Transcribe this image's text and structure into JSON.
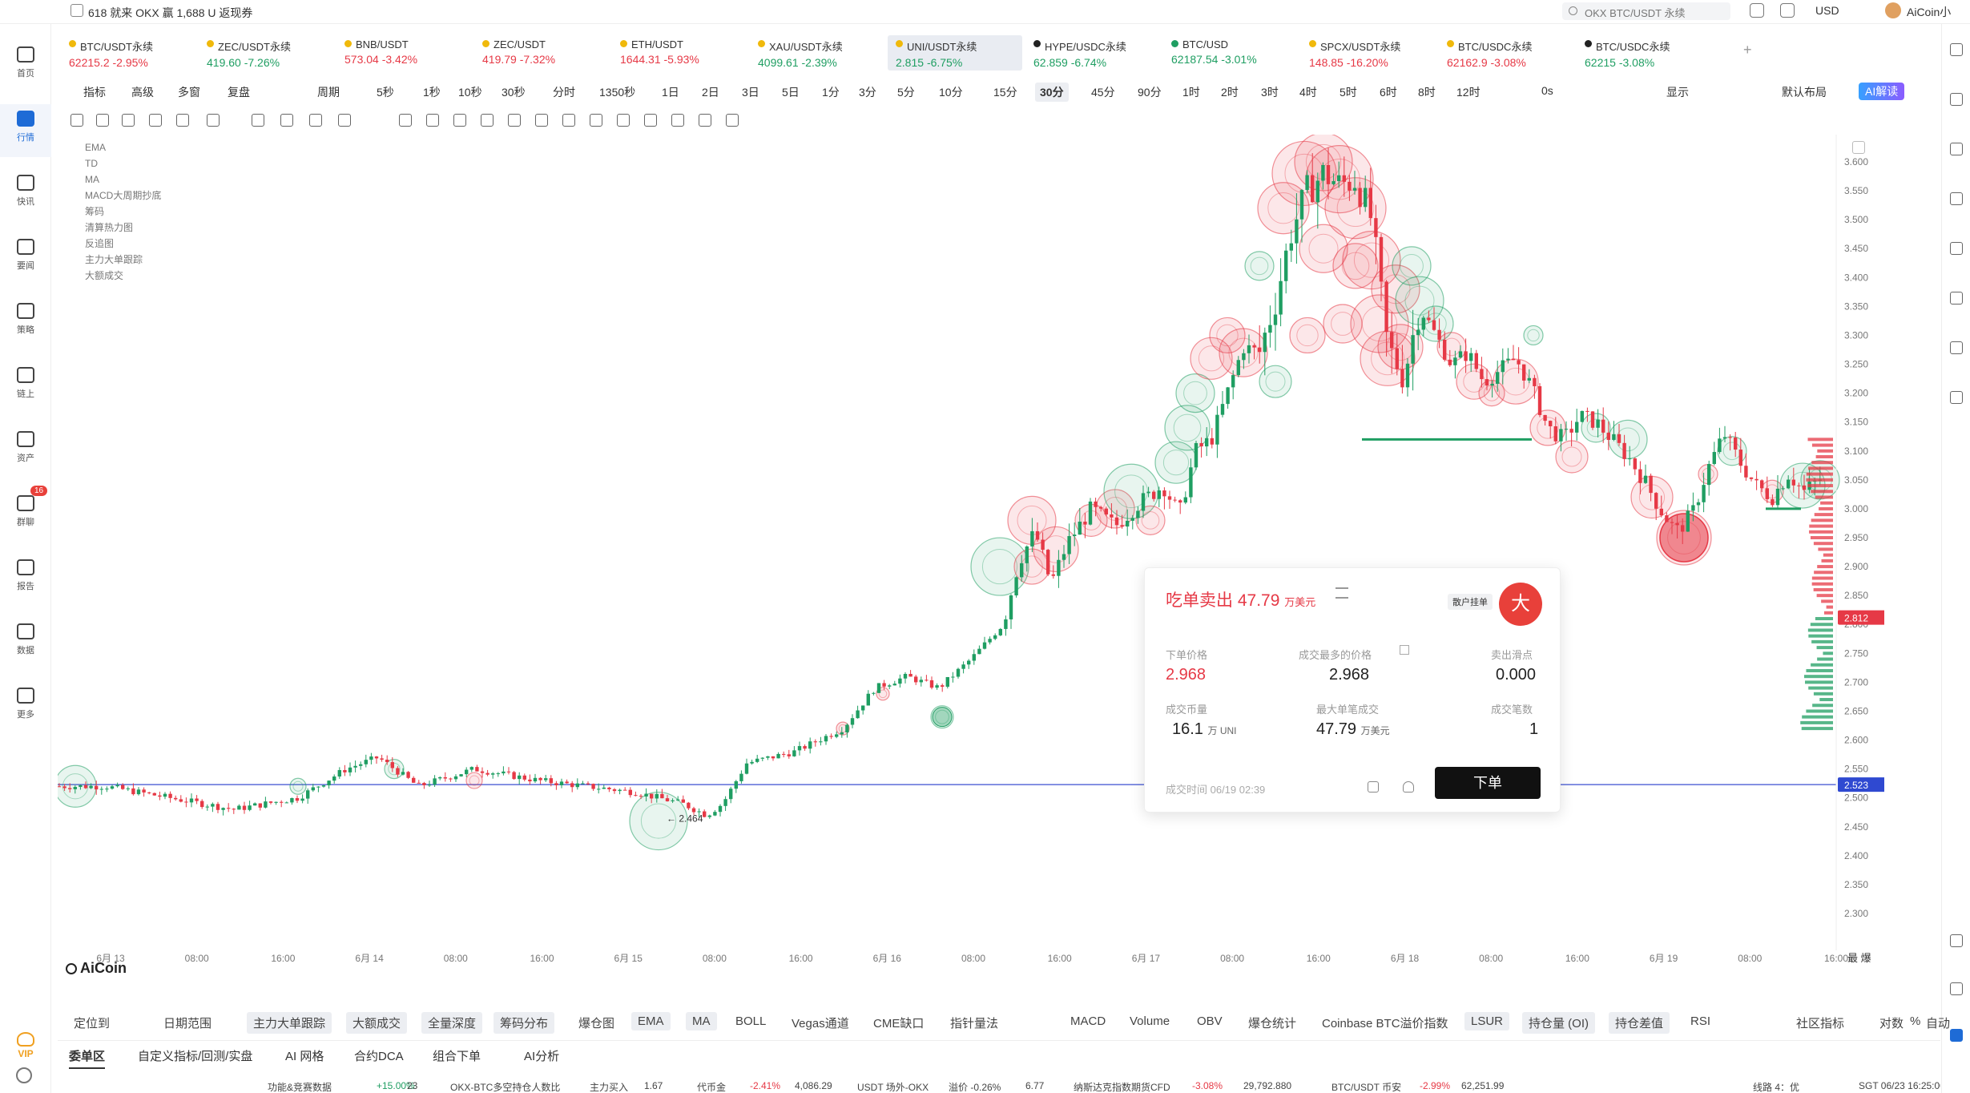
{
  "promo_text": "618 就来 OKX 赢 1,688 U 返现券",
  "search": {
    "placeholder": "OKX BTC/USDT 永续"
  },
  "currency": "USD",
  "username": "AiCoin小",
  "nav": [
    {
      "id": "home",
      "label": "首页"
    },
    {
      "id": "market",
      "label": "行情"
    },
    {
      "id": "flash",
      "label": "快讯"
    },
    {
      "id": "news",
      "label": "要闻"
    },
    {
      "id": "strategy",
      "label": "策略"
    },
    {
      "id": "onchain",
      "label": "链上"
    },
    {
      "id": "assets",
      "label": "资产"
    },
    {
      "id": "group",
      "label": "群聊",
      "badge": "16"
    },
    {
      "id": "report",
      "label": "报告"
    },
    {
      "id": "data",
      "label": "数据"
    },
    {
      "id": "more",
      "label": "更多"
    }
  ],
  "vip_label": "VIP",
  "tickers": [
    {
      "name": "BTC/USDT永续",
      "price": "62215.2",
      "change": "-2.95%",
      "dir": "dn",
      "dot": "#f0b90b"
    },
    {
      "name": "ZEC/USDT永续",
      "price": "419.60",
      "change": "-7.26%",
      "dir": "up",
      "dot": "#f0b90b"
    },
    {
      "name": "BNB/USDT",
      "price": "573.04",
      "change": "-3.42%",
      "dir": "dn",
      "dot": "#f0b90b"
    },
    {
      "name": "ZEC/USDT",
      "price": "419.79",
      "change": "-7.32%",
      "dir": "dn",
      "dot": "#f0b90b"
    },
    {
      "name": "ETH/USDT",
      "price": "1644.31",
      "change": "-5.93%",
      "dir": "dn",
      "dot": "#f0b90b"
    },
    {
      "name": "XAU/USDT永续",
      "price": "4099.61",
      "change": "-2.39%",
      "dir": "up",
      "dot": "#f0b90b"
    },
    {
      "name": "UNI/USDT永续",
      "price": "2.815",
      "change": "-6.75%",
      "dir": "up",
      "dot": "#f0b90b",
      "active": true
    },
    {
      "name": "HYPE/USDC永续",
      "price": "62.859",
      "change": "-6.74%",
      "dir": "up",
      "dot": "#222"
    },
    {
      "name": "BTC/USD",
      "price": "62187.54",
      "change": "-3.01%",
      "dir": "up",
      "dot": "#1f9e62"
    },
    {
      "name": "SPCX/USDT永续",
      "price": "148.85",
      "change": "-16.20%",
      "dir": "dn",
      "dot": "#f0b90b"
    },
    {
      "name": "BTC/USDC永续",
      "price": "62162.9",
      "change": "-3.08%",
      "dir": "dn",
      "dot": "#f0b90b"
    },
    {
      "name": "BTC/USDC永续",
      "price": "62215",
      "change": "-3.08%",
      "dir": "up",
      "dot": "#222"
    }
  ],
  "toolbar": {
    "left": [
      "指标",
      "高级",
      "多窗",
      "复盘"
    ],
    "period_label": "周期",
    "periods": [
      "5秒",
      "1秒",
      "10秒",
      "30秒",
      "分时",
      "1350秒",
      "1日",
      "2日",
      "3日",
      "5日",
      "1分",
      "3分",
      "5分",
      "10分",
      "15分",
      "30分",
      "45分",
      "90分",
      "1时",
      "2时",
      "3时",
      "4时",
      "5时",
      "6时",
      "8时",
      "12时"
    ],
    "selected_period": "30分",
    "zero": "0s",
    "show": "显示",
    "layout": "默认布局",
    "ai": "AI解读"
  },
  "indicators_overlay": [
    "EMA",
    "TD",
    "MA",
    "MACD大周期抄底",
    "筹码",
    "清算热力图",
    "反追图",
    "主力大单跟踪",
    "大额成交"
  ],
  "chart": {
    "y_ticks": [
      "3.600",
      "3.550",
      "3.500",
      "3.450",
      "3.400",
      "3.350",
      "3.300",
      "3.250",
      "3.200",
      "3.150",
      "3.100",
      "3.050",
      "3.000",
      "2.950",
      "2.900",
      "2.850",
      "2.800",
      "2.750",
      "2.700",
      "2.650",
      "2.600",
      "2.550",
      "2.500",
      "2.450",
      "2.400",
      "2.350",
      "2.300"
    ],
    "x_ticks": [
      "6月 13",
      "08:00",
      "16:00",
      "6月 14",
      "08:00",
      "16:00",
      "6月 15",
      "08:00",
      "16:00",
      "6月 16",
      "08:00",
      "16:00",
      "6月 17",
      "08:00",
      "16:00",
      "6月 18",
      "08:00",
      "16:00",
      "6月 19",
      "08:00",
      "16:00"
    ],
    "current_price": "2.812",
    "ref_price": "2.523",
    "low_marker": "2.464",
    "corner_label": "最 爆"
  },
  "logo": "AiCoin",
  "popup": {
    "title": "吃单卖出",
    "amount": "47.79",
    "amount_unit": "万美元",
    "acct": "散户挂单",
    "big": "大",
    "order_price_label": "下单价格",
    "order_price": "2.968",
    "most_price_label": "成交最多的价格",
    "most_price": "2.968",
    "slip_label": "卖出滑点",
    "slip": "0.000",
    "vol_label": "成交币量",
    "vol": "16.1",
    "vol_unit": "万 UNI",
    "max_label": "最大单笔成交",
    "max": "47.79",
    "max_unit": "万美元",
    "count_label": "成交笔数",
    "count": "1",
    "time": "成交时间 06/19 02:39",
    "order_btn": "下单"
  },
  "bottom_indicators": {
    "pos": "定位到",
    "date_range": "日期范围",
    "items": [
      {
        "label": "主力大单跟踪",
        "sel": true
      },
      {
        "label": "大额成交",
        "sel": true
      },
      {
        "label": "全量深度",
        "sel": true
      },
      {
        "label": "筹码分布",
        "sel": true
      },
      {
        "label": "爆仓图",
        "sel": false
      },
      {
        "label": "EMA",
        "sel": true
      },
      {
        "label": "MA",
        "sel": true
      },
      {
        "label": "BOLL",
        "sel": false
      },
      {
        "label": "Vegas通道",
        "sel": false
      },
      {
        "label": "CME缺口",
        "sel": false
      },
      {
        "label": "指针量法",
        "sel": false
      }
    ],
    "items2": [
      {
        "label": "MACD",
        "sel": false
      },
      {
        "label": "Volume",
        "sel": false
      },
      {
        "label": "OBV",
        "sel": false
      },
      {
        "label": "爆仓统计",
        "sel": false
      },
      {
        "label": "Coinbase BTC溢价指数",
        "sel": false
      },
      {
        "label": "LSUR",
        "sel": true
      },
      {
        "label": "持仓量 (OI)",
        "sel": true
      },
      {
        "label": "持仓差值",
        "sel": true
      },
      {
        "label": "RSI",
        "sel": false
      }
    ],
    "community": "社区指标",
    "pair": "对数",
    "pct": "%",
    "auto": "自动"
  },
  "tabs": [
    "委单区",
    "自定义指标/回测/实盘",
    "AI 网格",
    "合约DCA",
    "组合下单",
    "AI分析"
  ],
  "status": {
    "s1": "功能&竞赛数据",
    "s2": "+15.00%",
    "s3": "23",
    "s4": "OKX-BTC多空持仓人数比",
    "s5": "主力买入",
    "s6": "1.67",
    "s7": "代币金",
    "s8": "-2.41%",
    "s9": "4,086.29",
    "s10": "USDT 场外-OKX",
    "s11": "溢价 -0.26%",
    "s12": "6.77",
    "s13": "纳斯达克指数期货CFD",
    "s14": "-3.08%",
    "s15": "29,792.880",
    "s16": "BTC/USDT 币安",
    "s17": "-2.99%",
    "s18": "62,251.99",
    "s19": "线路 4：优",
    "s20": "SGT 06/23 16:25:00"
  }
}
